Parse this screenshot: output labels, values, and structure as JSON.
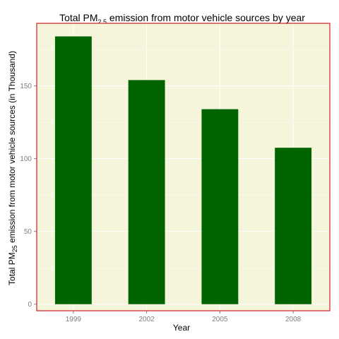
{
  "chart_data": {
    "type": "bar",
    "title_parts": [
      "Total PM",
      "2.5",
      " emission from motor vehicle sources by year"
    ],
    "xlabel": "Year",
    "ylabel_parts": [
      "Total PM",
      "25",
      " emission from motor vehicle sources (in Thousand)"
    ],
    "categories": [
      "1999",
      "2002",
      "2005",
      "2008"
    ],
    "values": [
      184,
      154,
      134,
      107.5
    ],
    "ylim": [
      -4.5,
      193
    ],
    "yticks": [
      0,
      50,
      100,
      150
    ],
    "grid": true,
    "legend": "none"
  },
  "colors": {
    "panel_background": "#f5f5dc",
    "panel_border": "#cc2222",
    "bar_fill": "#006400",
    "grid_major": "#ffffff",
    "tick_text": "#7f7f7f"
  }
}
